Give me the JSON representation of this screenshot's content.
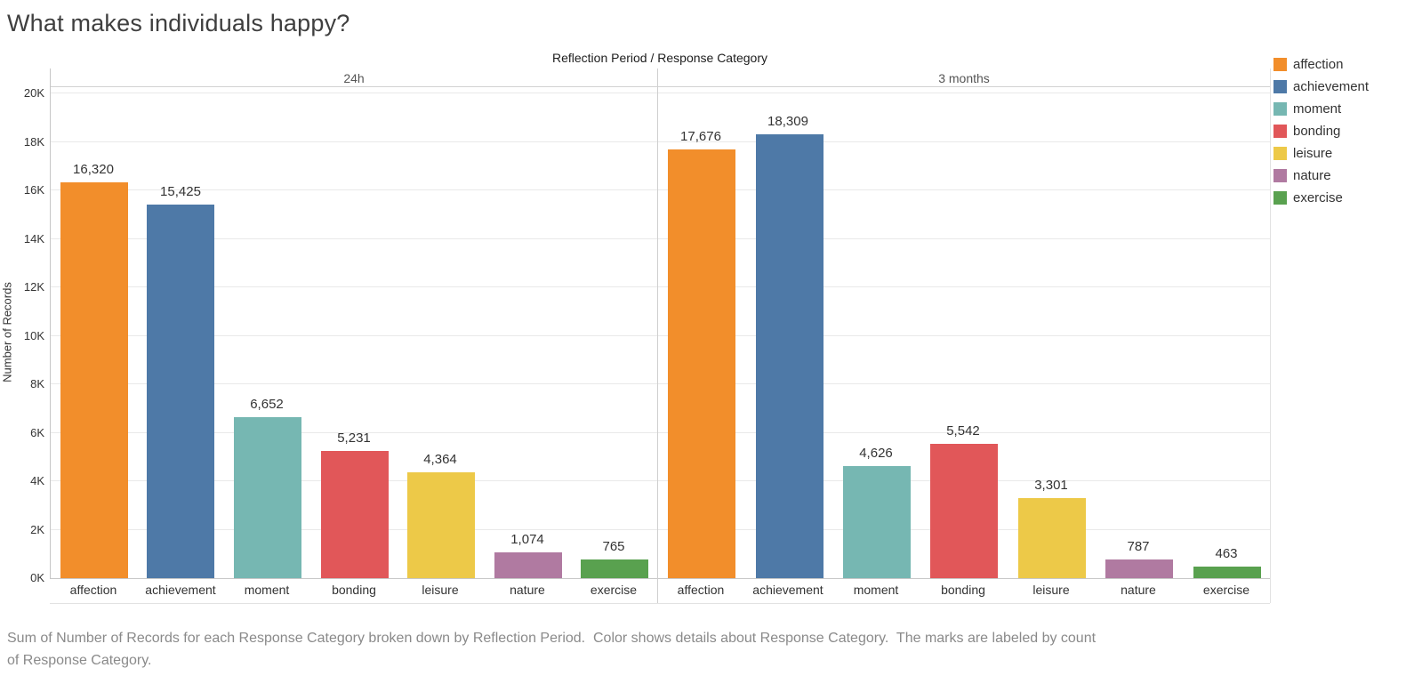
{
  "title": "What makes individuals happy?",
  "field_header": "Reflection Period  /  Response Category",
  "caption": "Sum of Number of Records for each Response Category broken down by Reflection Period.  Color shows details about Response Category.  The marks are labeled by count\nof Response Category.",
  "colors": {
    "affection": "#f28e2b",
    "achievement": "#4e79a7",
    "moment": "#76b7b2",
    "bonding": "#e15759",
    "leisure": "#edc948",
    "nature": "#b07aa1",
    "exercise": "#59a14f"
  },
  "legend": {
    "items": [
      "affection",
      "achievement",
      "moment",
      "bonding",
      "leisure",
      "nature",
      "exercise"
    ]
  },
  "chart_data": {
    "type": "bar",
    "title": "What makes individuals happy?",
    "xlabel": "Reflection Period / Response Category",
    "ylabel": "Number of Records",
    "categories": [
      "affection",
      "achievement",
      "moment",
      "bonding",
      "leisure",
      "nature",
      "exercise"
    ],
    "panels": [
      {
        "label": "24h",
        "values": [
          16320,
          15425,
          6652,
          5231,
          4364,
          1074,
          765
        ],
        "value_labels": [
          "16,320",
          "15,425",
          "6,652",
          "5,231",
          "4,364",
          "1,074",
          "765"
        ]
      },
      {
        "label": "3 months",
        "values": [
          17676,
          18309,
          4626,
          5542,
          3301,
          787,
          463
        ],
        "value_labels": [
          "17,676",
          "18,309",
          "4,626",
          "5,542",
          "3,301",
          "787",
          "463"
        ]
      }
    ],
    "ylim": [
      0,
      20260
    ],
    "ytick_values": [
      0,
      2000,
      4000,
      6000,
      8000,
      10000,
      12000,
      14000,
      16000,
      18000,
      20000
    ],
    "ytick_labels": [
      "0K",
      "2K",
      "4K",
      "6K",
      "8K",
      "10K",
      "12K",
      "14K",
      "16K",
      "18K",
      "20K"
    ],
    "grid": true,
    "legend_position": "right"
  }
}
